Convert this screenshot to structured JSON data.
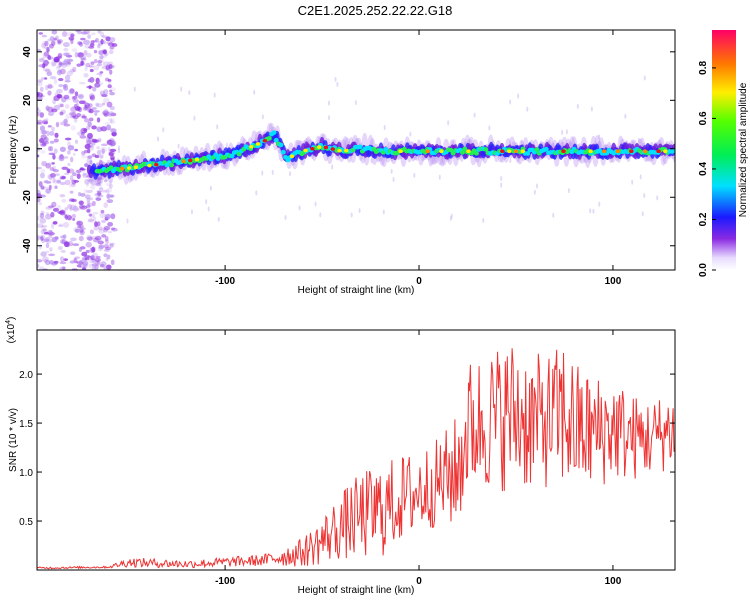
{
  "title": "C2E1.2025.252.22.22.G18",
  "colors": {
    "snr_line": "#ee3333",
    "axis": "#000000"
  },
  "chart_data": [
    {
      "type": "heatmap",
      "title": "C2E1.2025.252.22.22.G18",
      "xlabel": "Height of straight line (km)",
      "ylabel": "Frequency (Hz)",
      "xlim": [
        -197,
        132
      ],
      "ylim": [
        -50,
        49
      ],
      "xticks": [
        -100,
        0,
        100
      ],
      "xtick_labels": [
        "-100",
        "0",
        "100"
      ],
      "yticks": [
        -40,
        -20,
        0,
        20,
        40
      ],
      "ytick_labels": [
        "-40",
        "-20",
        "0",
        "20",
        "40"
      ],
      "colorbar": {
        "label": "Normalized spectral amplitude",
        "range": [
          0,
          0.95
        ],
        "ticks": [
          0.0,
          0.2,
          0.4,
          0.6,
          0.8
        ],
        "tick_labels": [
          "0.0",
          "0.2",
          "0.4",
          "0.6",
          "0.8"
        ]
      },
      "ridge": {
        "description_points_x": [
          -168,
          -150,
          -130,
          -110,
          -95,
          -80,
          -75,
          -72,
          -68,
          -60,
          -50,
          -40,
          -30,
          -20,
          0,
          20,
          40,
          60,
          80,
          100,
          130
        ],
        "description_points_y": [
          -9,
          -8,
          -6,
          -4,
          -2,
          3,
          6,
          2,
          -4,
          -1,
          1,
          -1,
          0,
          -1,
          -1,
          -1,
          -1,
          -1,
          -1,
          -1,
          -1
        ]
      }
    },
    {
      "type": "line",
      "xlabel": "Height of straight line (km)",
      "ylabel": "SNR (10 * v/v)",
      "yscale_label": "(x10",
      "yscale_exp": "4",
      "yscale_close": ")",
      "xlim": [
        -197,
        132
      ],
      "ylim": [
        0,
        2.45
      ],
      "xticks": [
        -100,
        0,
        100
      ],
      "xtick_labels": [
        "-100",
        "0",
        "100"
      ],
      "yticks": [
        0.5,
        1.0,
        1.5,
        2.0
      ],
      "ytick_labels": [
        "0.5",
        "1.0",
        "1.5",
        "2.0"
      ],
      "series": [
        {
          "name": "SNR",
          "envelope_x": [
            -197,
            -160,
            -150,
            -120,
            -80,
            -60,
            -50,
            -40,
            -30,
            -20,
            -10,
            0,
            10,
            20,
            25,
            30,
            40,
            50,
            60,
            70,
            75,
            80,
            90,
            100,
            110,
            120,
            132
          ],
          "envelope_y": [
            0.02,
            0.03,
            0.08,
            0.06,
            0.1,
            0.18,
            0.3,
            0.45,
            0.55,
            0.6,
            0.72,
            0.8,
            0.9,
            1.0,
            1.45,
            1.5,
            1.55,
            1.6,
            1.5,
            1.55,
            1.6,
            1.45,
            1.4,
            1.45,
            1.35,
            1.35,
            1.45
          ],
          "jitter": [
            0.01,
            0.01,
            0.05,
            0.04,
            0.06,
            0.15,
            0.25,
            0.35,
            0.45,
            0.5,
            0.45,
            0.45,
            0.45,
            0.6,
            0.7,
            0.7,
            0.75,
            0.8,
            0.7,
            0.7,
            0.8,
            0.7,
            0.6,
            0.55,
            0.45,
            0.4,
            0.4
          ]
        }
      ]
    }
  ]
}
